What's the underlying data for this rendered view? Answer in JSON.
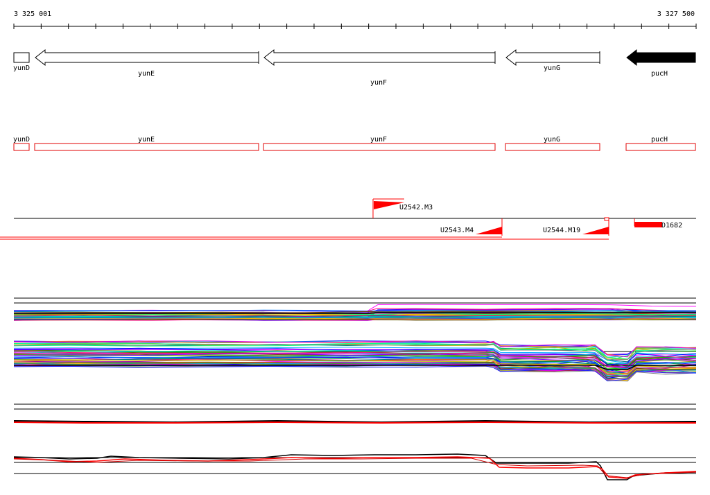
{
  "ruler": {
    "start_label": "3 325 001",
    "end_label": "3 327 500"
  },
  "genes": [
    {
      "id": "yunD",
      "label": "yunD",
      "strand": "-",
      "fill": "#ffffff"
    },
    {
      "id": "yunE",
      "label": "yunE",
      "strand": "-",
      "fill": "#ffffff"
    },
    {
      "id": "yunF",
      "label": "yunF",
      "strand": "-",
      "fill": "#ffffff"
    },
    {
      "id": "yunG",
      "label": "yunG",
      "strand": "-",
      "fill": "#ffffff"
    },
    {
      "id": "pucH",
      "label": "pucH",
      "strand": "-",
      "fill": "#000000"
    }
  ],
  "annotation_labels": [
    "yunD",
    "yunE",
    "yunF",
    "yunG",
    "pucH"
  ],
  "transcripts": [
    {
      "id": "U2542.M3",
      "label": "U2542.M3"
    },
    {
      "id": "U2543.M4",
      "label": "U2543.M4"
    },
    {
      "id": "U2544.M19",
      "label": "U2544.M19"
    },
    {
      "id": "D1682",
      "label": "D1682"
    }
  ],
  "colors": {
    "annotation": "#e00000",
    "transcript": "#ff0000",
    "axis": "#000000"
  },
  "expression_panels": [
    {
      "id": "panel-1",
      "kind": "multi-condition profiles"
    },
    {
      "id": "panel-2",
      "kind": "multi-condition profiles"
    },
    {
      "id": "panel-3",
      "kind": "summary profiles"
    },
    {
      "id": "panel-4",
      "kind": "summary profiles"
    }
  ]
}
